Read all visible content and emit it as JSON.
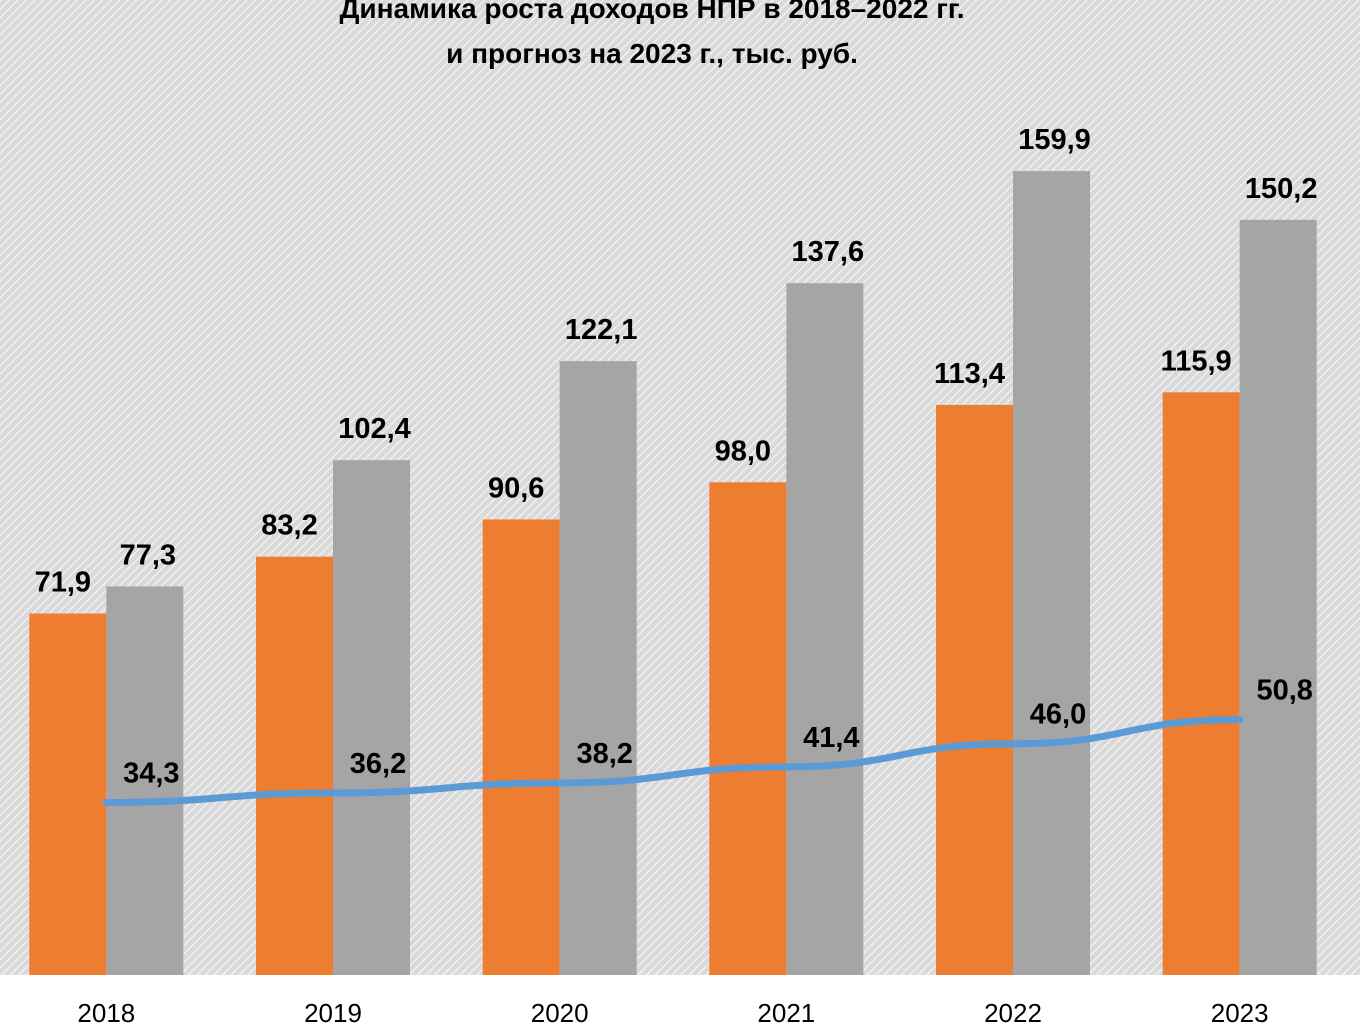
{
  "chart_data": {
    "type": "bar",
    "title": "Динамика роста доходов НПР в 2018–2022 гг.",
    "subtitle": "и прогноз на 2023 г., тыс. руб.",
    "categories": [
      "2018",
      "2019",
      "2020",
      "2021",
      "2022",
      "2023"
    ],
    "series": [
      {
        "type": "bar",
        "color": "#ED7D31",
        "values": [
          71.9,
          83.2,
          90.6,
          98.0,
          113.4,
          115.9
        ],
        "labels": [
          "71,9",
          "83,2",
          "90,6",
          "98,0",
          "113,4",
          "115,9"
        ]
      },
      {
        "type": "bar",
        "color": "#A5A5A5",
        "values": [
          77.3,
          102.4,
          122.1,
          137.6,
          159.9,
          150.2
        ],
        "labels": [
          "77,3",
          "102,4",
          "122,1",
          "137,6",
          "159,9",
          "150,2"
        ]
      },
      {
        "type": "line",
        "color": "#5B9BD5",
        "values": [
          34.3,
          36.2,
          38.2,
          41.4,
          46.0,
          50.8
        ],
        "labels": [
          "34,3",
          "36,2",
          "38,2",
          "41,4",
          "46,0",
          "50,8"
        ]
      }
    ],
    "ylim": [
      0,
      180
    ],
    "grid": false,
    "legend": "none"
  }
}
